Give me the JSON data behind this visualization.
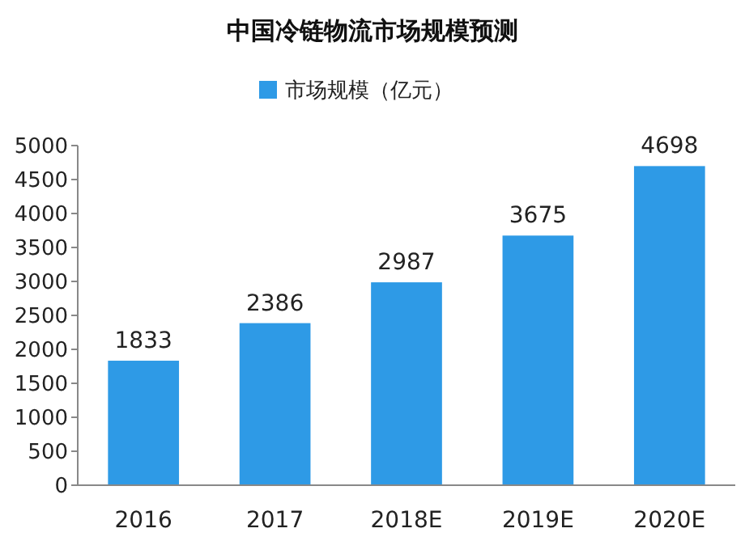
{
  "chart_data": {
    "type": "bar",
    "title": "中国冷链物流市场规模预测",
    "categories": [
      "2016",
      "2017",
      "2018E",
      "2019E",
      "2020E"
    ],
    "series": [
      {
        "name": "市场规模（亿元）",
        "color": "#2e9ae6",
        "values": [
          1833,
          2386,
          2987,
          3675,
          4698
        ]
      }
    ],
    "ylim": [
      0,
      5000
    ],
    "yticks": [
      0,
      500,
      1000,
      1500,
      2000,
      2500,
      3000,
      3500,
      4000,
      4500,
      5000
    ],
    "data_labels": true,
    "legend": "top",
    "grid": false
  }
}
